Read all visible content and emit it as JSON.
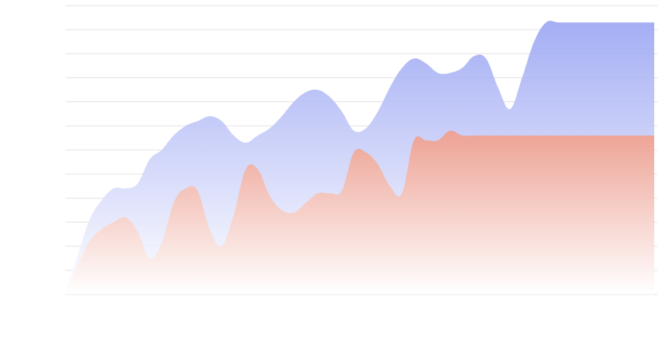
{
  "chart_data": {
    "type": "area",
    "title": "",
    "xlabel": "",
    "ylabel": "",
    "ylim": [
      0,
      12
    ],
    "grid": true,
    "x": [
      0,
      1,
      2,
      3,
      4,
      5,
      6,
      7,
      8,
      9,
      10,
      11,
      12,
      13,
      14,
      15,
      16,
      17,
      18,
      19,
      20,
      21,
      22,
      23,
      24,
      25,
      26,
      27,
      28,
      29,
      30,
      31,
      32,
      33,
      34,
      35,
      36,
      37,
      38,
      39,
      40,
      41,
      42,
      43,
      44,
      45,
      46,
      47,
      48,
      49
    ],
    "series": [
      {
        "color": "#aab3f5",
        "values": [
          0.2,
          1.6,
          3.1,
          3.9,
          4.4,
          4.4,
          4.6,
          5.6,
          6.0,
          6.6,
          7.0,
          7.2,
          7.4,
          7.2,
          6.6,
          6.3,
          6.6,
          6.9,
          7.4,
          8.0,
          8.4,
          8.5,
          8.2,
          7.6,
          6.8,
          6.9,
          7.6,
          8.6,
          9.4,
          9.8,
          9.6,
          9.2,
          9.2,
          9.4,
          9.9,
          9.8,
          8.6,
          7.7,
          9.0,
          10.5,
          11.3,
          11.3,
          11.3,
          11.3,
          11.3,
          11.3,
          11.3,
          11.3,
          11.3,
          11.3
        ]
      },
      {
        "color": "#f0a89a",
        "values": [
          0.0,
          1.2,
          2.2,
          2.7,
          3.0,
          3.2,
          2.6,
          1.5,
          2.1,
          3.8,
          4.4,
          4.3,
          2.7,
          2.0,
          3.3,
          5.2,
          5.2,
          4.1,
          3.5,
          3.4,
          3.8,
          4.2,
          4.2,
          4.3,
          5.9,
          5.9,
          5.4,
          4.5,
          4.2,
          6.4,
          6.4,
          6.4,
          6.8,
          6.6,
          6.6,
          6.6,
          6.6,
          6.6,
          6.6,
          6.6,
          6.6,
          6.6,
          6.6,
          6.6,
          6.6,
          6.6,
          6.6,
          6.6,
          6.6,
          6.6
        ]
      }
    ]
  }
}
